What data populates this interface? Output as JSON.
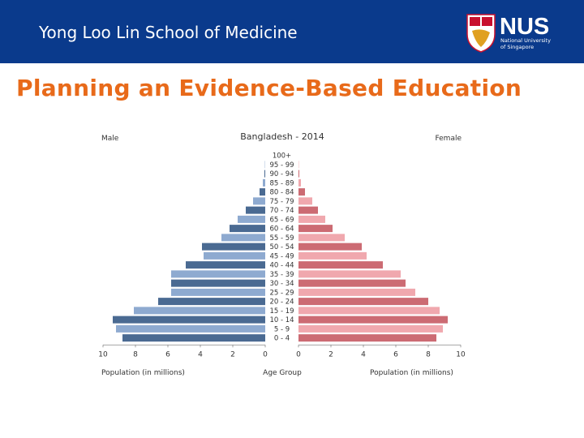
{
  "header": {
    "title": "Yong Loo Lin School of Medicine",
    "logo_text": "NUS",
    "logo_subtitle_line1": "National University",
    "logo_subtitle_line2": "of Singapore"
  },
  "slide": {
    "title": "Planning an Evidence-Based Education"
  },
  "colors": {
    "header_bg": "#0a3a8c",
    "title_orange": "#e86a1a",
    "male_dark": "#4a6a92",
    "male_light": "#8eaad0",
    "female_dark": "#cc6b73",
    "female_light": "#f0a8ae"
  },
  "chart_data": {
    "type": "bar",
    "title": "Bangladesh - 2014",
    "left_label": "Male",
    "right_label": "Female",
    "xlabel_left": "Population (in millions)",
    "xlabel_center": "Age Group",
    "xlabel_right": "Population (in millions)",
    "xlim": [
      0,
      10
    ],
    "ticks_left": [
      "10",
      "8",
      "6",
      "4",
      "2",
      "0"
    ],
    "ticks_right": [
      "0",
      "2",
      "4",
      "6",
      "8",
      "10"
    ],
    "categories": [
      "100+",
      "95 - 99",
      "90 - 94",
      "85 - 89",
      "80 - 84",
      "75 - 79",
      "70 - 74",
      "65 - 69",
      "60 - 64",
      "55 - 59",
      "50 - 54",
      "45 - 49",
      "40 - 44",
      "35 - 39",
      "30 - 34",
      "25 - 29",
      "20 - 24",
      "15 - 19",
      "10 - 14",
      "5 - 9",
      "0 - 4"
    ],
    "series": [
      {
        "name": "Male",
        "values": [
          0.0,
          0.02,
          0.05,
          0.15,
          0.35,
          0.75,
          1.2,
          1.7,
          2.2,
          2.7,
          3.9,
          3.8,
          4.9,
          5.8,
          5.8,
          5.8,
          6.6,
          8.1,
          9.4,
          9.2,
          8.8
        ]
      },
      {
        "name": "Female",
        "values": [
          0.0,
          0.02,
          0.05,
          0.15,
          0.4,
          0.85,
          1.2,
          1.65,
          2.1,
          2.85,
          3.9,
          4.2,
          5.2,
          6.3,
          6.6,
          7.2,
          8.0,
          8.7,
          9.2,
          8.9,
          8.5
        ]
      }
    ]
  }
}
